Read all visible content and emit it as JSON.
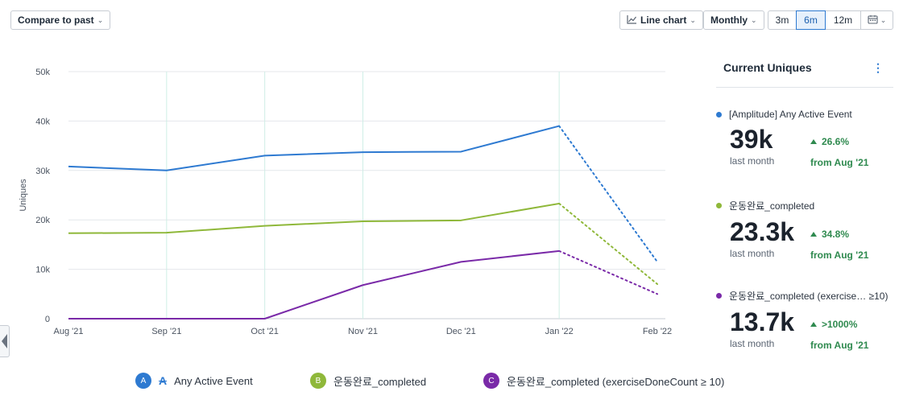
{
  "toolbar": {
    "compare_label": "Compare to past",
    "chart_type_label": "Line chart",
    "interval_label": "Monthly",
    "ranges": [
      "3m",
      "6m",
      "12m"
    ],
    "active_range": "6m"
  },
  "panel": {
    "title": "Current Uniques",
    "metrics": [
      {
        "name": "[Amplitude] Any Active Event",
        "value": "39k",
        "sub": "last month",
        "change": "26.6%",
        "from": "from Aug '21",
        "color": "#2e7ad1"
      },
      {
        "name": "운동완료_completed",
        "value": "23.3k",
        "sub": "last month",
        "change": "34.8%",
        "from": "from Aug '21",
        "color": "#8fb83a"
      },
      {
        "name": "운동완료_completed (exercise… ≥10)",
        "value": "13.7k",
        "sub": "last month",
        "change": ">1000%",
        "from": "from Aug '21",
        "color": "#7a2aa8"
      }
    ]
  },
  "legend": [
    {
      "badge": "A",
      "label": "Any Active Event",
      "color": "#2e7ad1"
    },
    {
      "badge": "B",
      "label": "운동완료_completed",
      "color": "#8fb83a"
    },
    {
      "badge": "C",
      "label": "운동완료_completed (exerciseDoneCount ≥ 10)",
      "color": "#7a2aa8"
    }
  ],
  "chart_data": {
    "type": "line",
    "categories": [
      "Aug '21",
      "Sep '21",
      "Oct '21",
      "Nov '21",
      "Dec '21",
      "Jan '22",
      "Feb '22"
    ],
    "ylabel": "Uniques",
    "ylim": [
      0,
      50000
    ],
    "yticks": [
      0,
      10000,
      20000,
      30000,
      40000,
      50000
    ],
    "ytick_labels": [
      "0",
      "10k",
      "20k",
      "30k",
      "40k",
      "50k"
    ],
    "grid": true,
    "incomplete_last_period": true,
    "series": [
      {
        "name": "[Amplitude] Any Active Event",
        "color": "#2e7ad1",
        "values": [
          30800,
          30000,
          33000,
          33700,
          33800,
          39000,
          11500
        ]
      },
      {
        "name": "운동완료_completed",
        "color": "#8fb83a",
        "values": [
          17300,
          17400,
          18800,
          19700,
          19900,
          23300,
          7000
        ]
      },
      {
        "name": "운동완료_completed (exerciseDoneCount ≥ 10)",
        "color": "#7a2aa8",
        "values": [
          0,
          0,
          0,
          6800,
          11500,
          13700,
          5000
        ]
      }
    ]
  }
}
